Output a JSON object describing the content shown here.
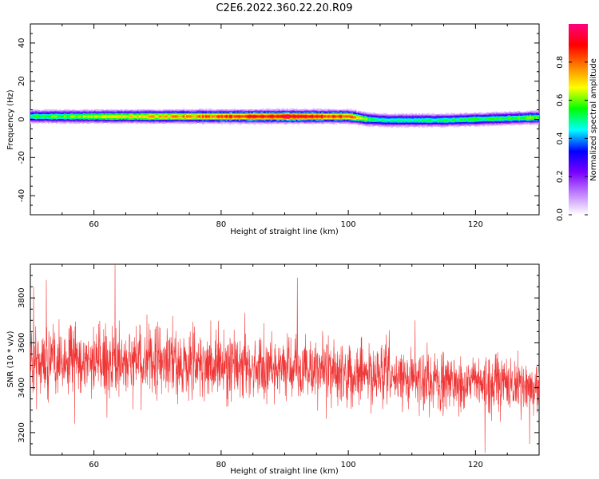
{
  "title": "C2E6.2022.360.22.20.R09",
  "chart_data": [
    {
      "type": "heatmap",
      "xlabel": "Height of straight line (km)",
      "ylabel": "Frequency (Hz)",
      "xlim": [
        50,
        130
      ],
      "ylim": [
        -50,
        50
      ],
      "x_ticks": [
        60,
        80,
        100,
        120
      ],
      "y_ticks": [
        -40,
        -20,
        0,
        20,
        40
      ],
      "colorbar": {
        "label": "Normalized spectral amplitude",
        "range": [
          0,
          1
        ],
        "ticks": [
          "0.0",
          "0.2",
          "0.4",
          "0.6",
          "0.8"
        ],
        "colormap": [
          "#ffffff",
          "#c080ff",
          "#7a00ff",
          "#0000ff",
          "#00ffff",
          "#00ff00",
          "#ffff00",
          "#ff8000",
          "#ff0000",
          "#ff0080"
        ]
      },
      "band_center_hz": [
        {
          "x": 50,
          "y": 1.5
        },
        {
          "x": 60,
          "y": 1.5
        },
        {
          "x": 70,
          "y": 1.5
        },
        {
          "x": 80,
          "y": 1.5
        },
        {
          "x": 90,
          "y": 1.5
        },
        {
          "x": 100,
          "y": 1.5
        },
        {
          "x": 103,
          "y": 0
        },
        {
          "x": 106,
          "y": -0.5
        },
        {
          "x": 115,
          "y": -0.5
        },
        {
          "x": 125,
          "y": 0.5
        },
        {
          "x": 130,
          "y": 1
        }
      ],
      "band_peak_amplitude": [
        {
          "x": 50,
          "y": 0.55
        },
        {
          "x": 60,
          "y": 0.65
        },
        {
          "x": 70,
          "y": 0.75
        },
        {
          "x": 80,
          "y": 0.85
        },
        {
          "x": 90,
          "y": 0.95
        },
        {
          "x": 100,
          "y": 0.85
        },
        {
          "x": 104,
          "y": 0.5
        },
        {
          "x": 110,
          "y": 0.5
        },
        {
          "x": 120,
          "y": 0.55
        },
        {
          "x": 130,
          "y": 0.6
        }
      ]
    },
    {
      "type": "line",
      "xlabel": "Height of straight line (km)",
      "ylabel": "SNR (10 * v/v)",
      "xlim": [
        50,
        130
      ],
      "ylim": [
        3100,
        3950
      ],
      "x_ticks": [
        60,
        80,
        100,
        120
      ],
      "y_ticks": [
        3200,
        3400,
        3600,
        3800
      ],
      "color": "#f03535",
      "n_samples": 2200,
      "trend": [
        {
          "x": 50,
          "mean": 3520,
          "spread": 140
        },
        {
          "x": 70,
          "mean": 3510,
          "spread": 140
        },
        {
          "x": 90,
          "mean": 3490,
          "spread": 130
        },
        {
          "x": 105,
          "mean": 3450,
          "spread": 120
        },
        {
          "x": 120,
          "mean": 3420,
          "spread": 110
        },
        {
          "x": 130,
          "mean": 3410,
          "spread": 110
        }
      ],
      "spikes": [
        {
          "x": 50.5,
          "y": 3850
        },
        {
          "x": 52.5,
          "y": 3880
        },
        {
          "x": 63.3,
          "y": 3950
        },
        {
          "x": 92,
          "y": 3890
        },
        {
          "x": 110.5,
          "y": 3700
        },
        {
          "x": 121.5,
          "y": 3110
        },
        {
          "x": 128.5,
          "y": 3150
        },
        {
          "x": 57,
          "y": 3240
        }
      ]
    }
  ]
}
